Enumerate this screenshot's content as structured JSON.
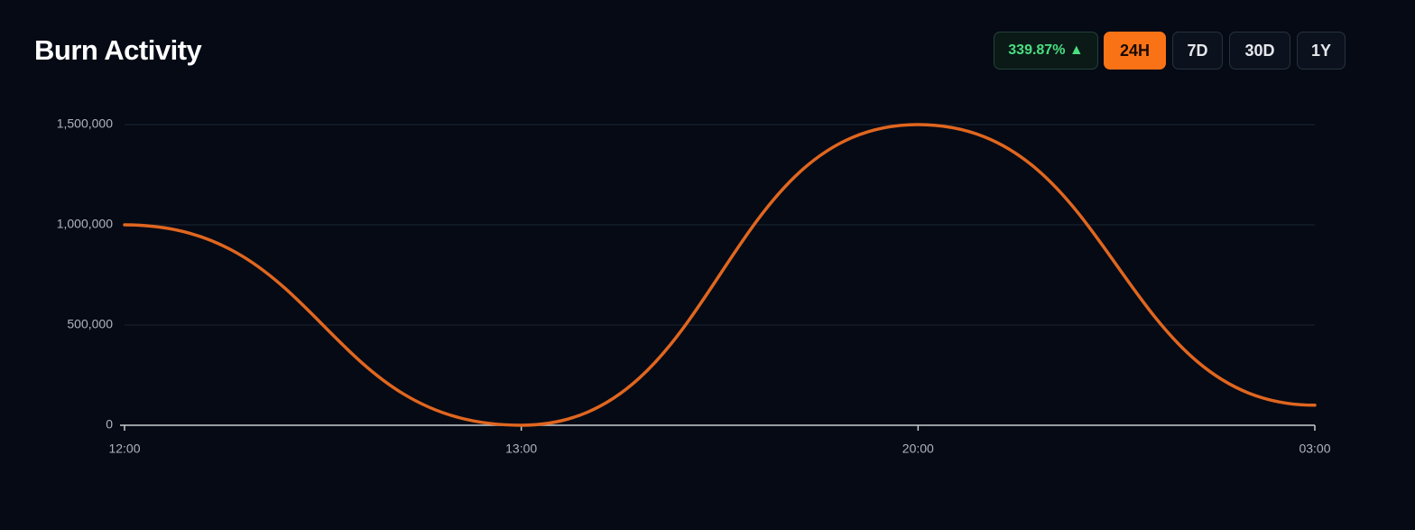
{
  "chart_data": {
    "type": "line",
    "title": "Burn Activity",
    "change_badge": "339.87% ▲",
    "ranges": [
      "24H",
      "7D",
      "30D",
      "1Y"
    ],
    "active_range": "24H",
    "categories": [
      "12:00",
      "13:00",
      "20:00",
      "03:00"
    ],
    "series": [
      {
        "name": "Burn",
        "color": "#e0661f",
        "values": [
          1000000,
          0,
          1500000,
          100000
        ]
      }
    ],
    "ylim": [
      0,
      1500000
    ],
    "yticks": [
      0,
      {
        "value": 500000,
        "label": "500,000"
      },
      {
        "value": 1000000,
        "label": "1,000,000"
      },
      {
        "value": 1500000,
        "label": "1,500,000"
      }
    ],
    "grid": true,
    "smooth": true
  }
}
